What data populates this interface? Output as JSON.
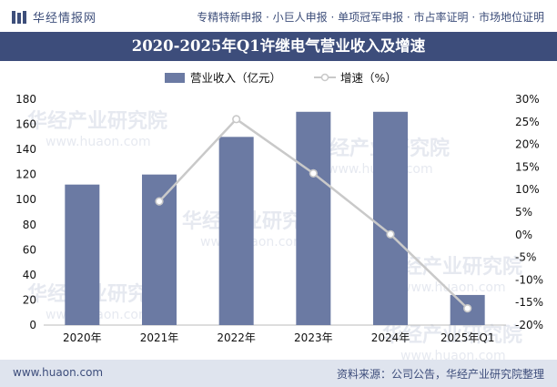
{
  "header": {
    "brand": "华经情报网",
    "tags": "专精特新申报 · 小巨人申报 · 单项冠军申报 · 市占率证明 · 市场地位证明"
  },
  "watermark": {
    "main": "华经产业研究院",
    "sub": "www.huaon.com"
  },
  "footer": {
    "site": "www.huaon.com",
    "source": "资料来源：公司公告，华经产业研究院整理"
  },
  "colors": {
    "bar": "#6b7aa3",
    "line": "#c9c9c9",
    "header_bg": "#3d4d7b",
    "footer_bg": "#dfe4ee"
  },
  "chart_data": {
    "type": "bar+line",
    "title": "2020-2025年Q1许继电气营业收入及增速",
    "categories": [
      "2020年",
      "2021年",
      "2022年",
      "2023年",
      "2024年",
      "2025年Q1"
    ],
    "series": [
      {
        "name": "营业收入（亿元）",
        "type": "bar",
        "axis": "left",
        "values": [
          112,
          120,
          150,
          170,
          170,
          24
        ]
      },
      {
        "name": "增速（%）",
        "type": "line",
        "axis": "right",
        "values": [
          null,
          7.4,
          25.6,
          13.6,
          0.1,
          -16.3
        ]
      }
    ],
    "y_left": {
      "min": 0,
      "max": 180,
      "ticks": [
        0,
        20,
        40,
        60,
        80,
        100,
        120,
        140,
        160,
        180
      ]
    },
    "y_right": {
      "min": -20,
      "max": 30,
      "ticks": [
        "-20%",
        "-15%",
        "-10%",
        "-5%",
        "0%",
        "5%",
        "10%",
        "15%",
        "20%",
        "25%",
        "30%"
      ]
    },
    "legend_position": "top-center",
    "grid": false
  }
}
